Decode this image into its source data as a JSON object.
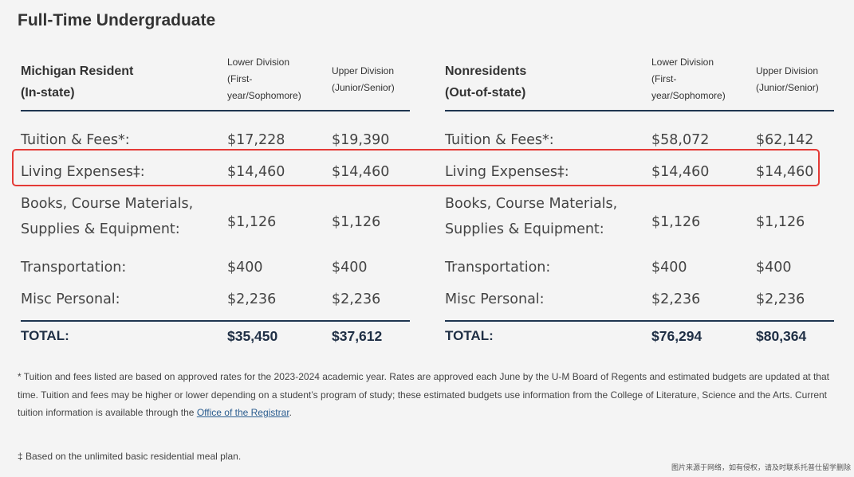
{
  "title": "Full-Time Undergraduate",
  "tables": [
    {
      "heading_line1": "Michigan Resident",
      "heading_line2": "(In-state)",
      "col1_line1": "Lower Division",
      "col1_line2": "(First-",
      "col1_line3": "year/Sophomore)",
      "col2_line1": "Upper Division",
      "col2_line2": "(Junior/Senior)",
      "rows": [
        {
          "label_line1": "Tuition & Fees*:",
          "label_line2": "",
          "lower": "$17,228",
          "upper": "$19,390"
        },
        {
          "label_line1": "Living Expenses‡:",
          "label_line2": "",
          "lower": "$14,460",
          "upper": "$14,460"
        },
        {
          "label_line1": "Books, Course Materials,",
          "label_line2": "Supplies & Equipment:",
          "lower": "$1,126",
          "upper": "$1,126"
        },
        {
          "label_line1": "Transportation:",
          "label_line2": "",
          "lower": "$400",
          "upper": "$400"
        },
        {
          "label_line1": "Misc Personal:",
          "label_line2": "",
          "lower": "$2,236",
          "upper": "$2,236"
        }
      ],
      "total": {
        "label": "TOTAL:",
        "lower": "$35,450",
        "upper": "$37,612"
      }
    },
    {
      "heading_line1": "Nonresidents",
      "heading_line2": "(Out-of-state)",
      "col1_line1": "Lower Division",
      "col1_line2": "(First-",
      "col1_line3": "year/Sophomore)",
      "col2_line1": "Upper Division",
      "col2_line2": "(Junior/Senior)",
      "rows": [
        {
          "label_line1": "Tuition & Fees*:",
          "label_line2": "",
          "lower": "$58,072",
          "upper": "$62,142"
        },
        {
          "label_line1": "Living Expenses‡:",
          "label_line2": "",
          "lower": "$14,460",
          "upper": "$14,460"
        },
        {
          "label_line1": "Books, Course Materials,",
          "label_line2": "Supplies & Equipment:",
          "lower": "$1,126",
          "upper": "$1,126"
        },
        {
          "label_line1": "Transportation:",
          "label_line2": "",
          "lower": "$400",
          "upper": "$400"
        },
        {
          "label_line1": "Misc Personal:",
          "label_line2": "",
          "lower": "$2,236",
          "upper": "$2,236"
        }
      ],
      "total": {
        "label": "TOTAL:",
        "lower": "$76,294",
        "upper": "$80,364"
      }
    }
  ],
  "footnote": {
    "text_before_link": "* Tuition and fees listed are based on approved rates for the 2023-2024 academic year. Rates are approved each June by the U-M Board of Regents and estimated budgets are updated at that time. Tuition and fees may be higher or lower depending on a student’s program of study; these estimated budgets use information from the College of Literature, Science and the Arts. Current tuition information is available through the ",
    "link_text": "Office of the Registrar",
    "text_after_link": "."
  },
  "footnote2": "‡ Based on the unlimited basic residential meal plan.",
  "watermark": "图片来源于网络，如有侵权，请及时联系托普仕留学删除",
  "highlight_color": "#e43a36",
  "rule_color": "#1f3550"
}
